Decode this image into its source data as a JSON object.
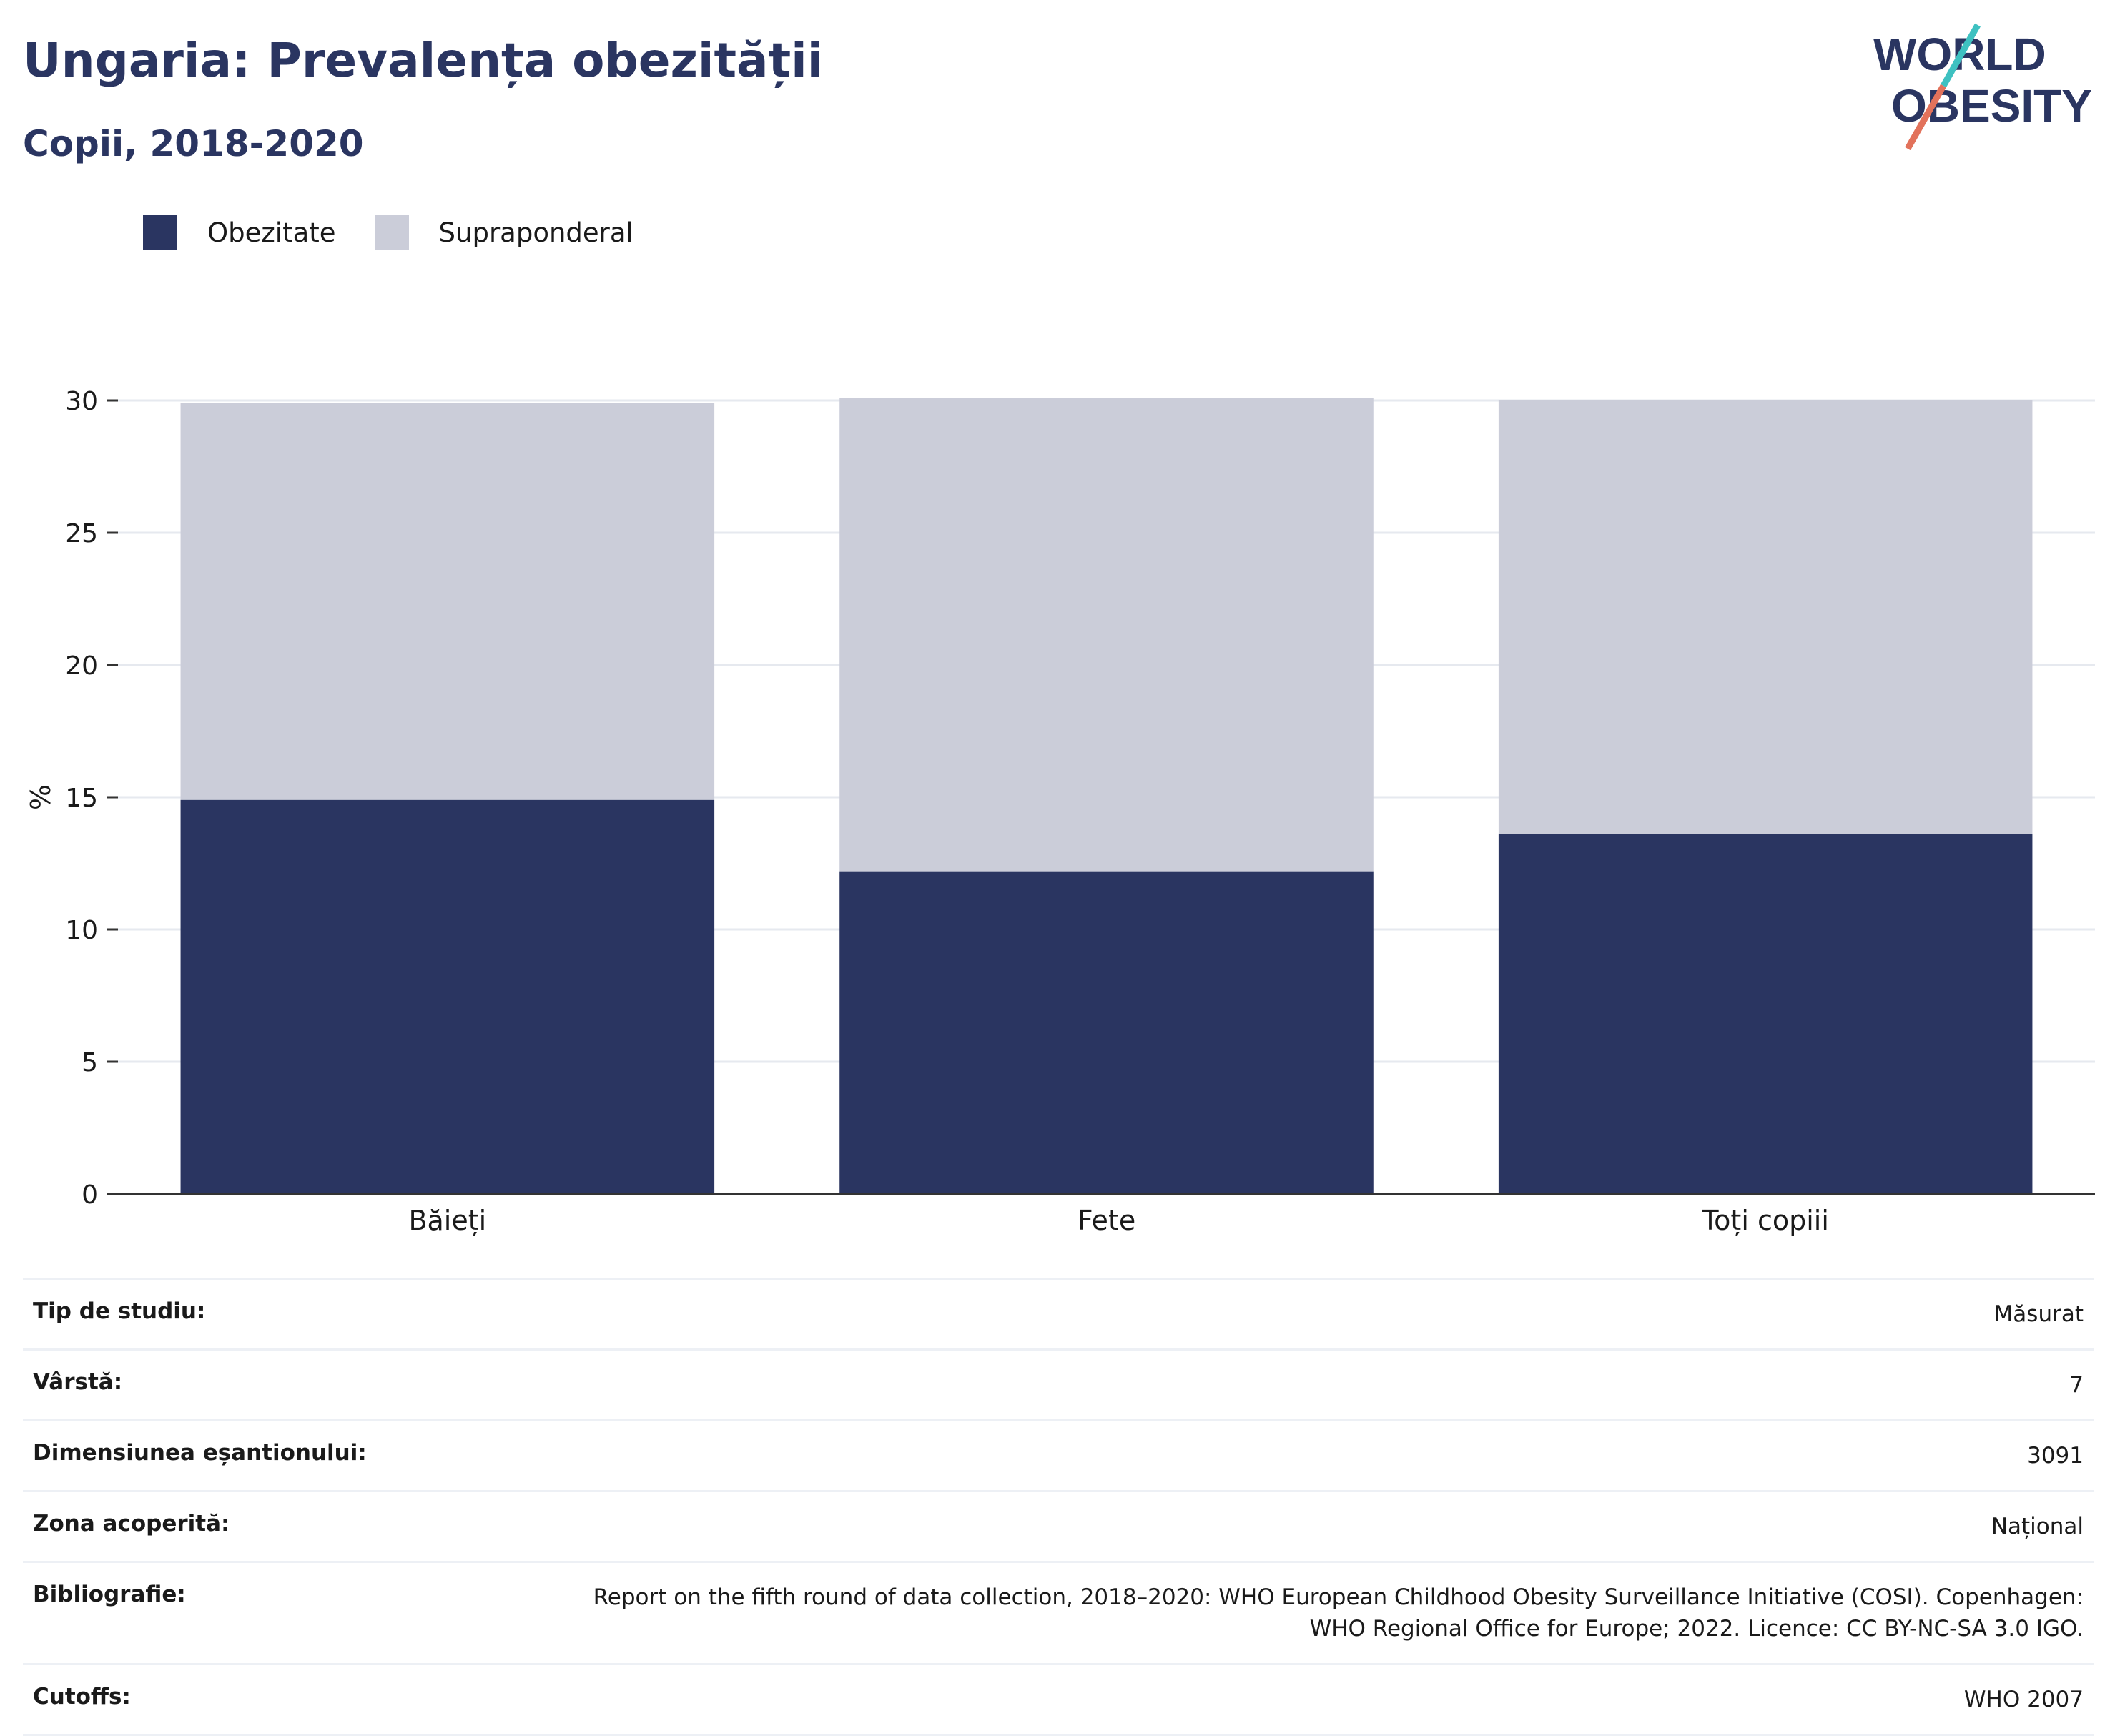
{
  "header": {
    "title": "Ungaria: Prevalența obezității",
    "subtitle": "Copii, 2018-2020"
  },
  "logo": {
    "line1": "WORLD",
    "line2": "OBESITY"
  },
  "colors": {
    "obesity": "#2a3561",
    "overweight": "#cbcdd9",
    "text": "#1a1a1a",
    "grid": "#e6e9ef"
  },
  "legend": [
    {
      "label": "Obezitate",
      "color": "#2a3561"
    },
    {
      "label": "Supraponderal",
      "color": "#cbcdd9"
    }
  ],
  "chart_data": {
    "type": "bar",
    "stacked": true,
    "categories": [
      "Băieți",
      "Fete",
      "Toți copiii"
    ],
    "series": [
      {
        "name": "Obezitate",
        "values": [
          14.9,
          12.2,
          13.6
        ]
      },
      {
        "name": "Supraponderal",
        "values": [
          15.0,
          17.9,
          16.4
        ]
      }
    ],
    "ylabel": "%",
    "ylim": [
      0,
      30
    ],
    "yticks": [
      0,
      5,
      10,
      15,
      20,
      25,
      30
    ],
    "grid": true,
    "legend_position": "top-left"
  },
  "info": [
    {
      "key": "Tip de studiu:",
      "value": "Măsurat"
    },
    {
      "key": "Vârstă:",
      "value": "7"
    },
    {
      "key": "Dimensiunea eșantionului:",
      "value": "3091"
    },
    {
      "key": "Zona acoperită:",
      "value": "Național"
    },
    {
      "key": "Bibliografie:",
      "value": "Report on the fifth round of data collection, 2018–2020: WHO European Childhood Obesity Surveillance Initiative (COSI). Copenhagen:",
      "value2": "WHO Regional Office for Europe; 2022. Licence: CC BY-NC-SA 3.0 IGO."
    },
    {
      "key": "Cutoffs:",
      "value": "WHO 2007"
    }
  ]
}
